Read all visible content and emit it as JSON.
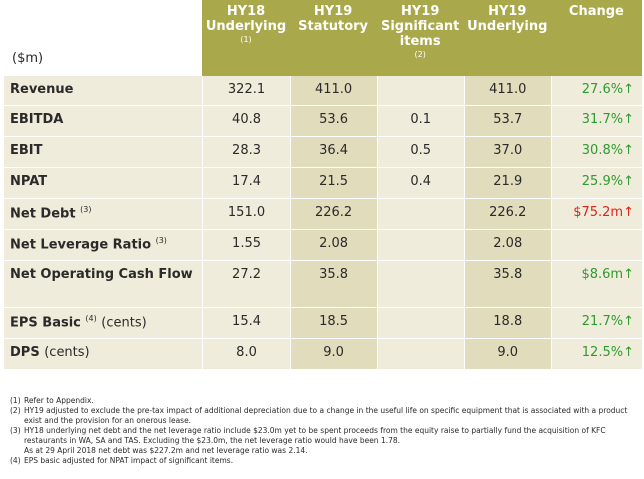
{
  "table": {
    "units_label": "($m)",
    "headers": [
      {
        "title_lines": [
          "HY18",
          "Underlying"
        ],
        "footnote": "(1)"
      },
      {
        "title_lines": [
          "HY19",
          "Statutory"
        ],
        "footnote": ""
      },
      {
        "title_lines": [
          "HY19",
          "Significant",
          "items"
        ],
        "footnote": "(2)"
      },
      {
        "title_lines": [
          "HY19",
          "Underlying"
        ],
        "footnote": ""
      },
      {
        "title_lines": [
          "Change"
        ],
        "footnote": ""
      }
    ],
    "rows": [
      {
        "label": "Revenue",
        "sup": "",
        "paren": "",
        "hy18": "322.1",
        "statutory": "411.0",
        "significant": "",
        "underlying": "411.0",
        "change": "27.6%",
        "change_sign": "pos"
      },
      {
        "label": "EBITDA",
        "sup": "",
        "paren": "",
        "hy18": "40.8",
        "statutory": "53.6",
        "significant": "0.1",
        "underlying": "53.7",
        "change": "31.7%",
        "change_sign": "pos"
      },
      {
        "label": "EBIT",
        "sup": "",
        "paren": "",
        "hy18": "28.3",
        "statutory": "36.4",
        "significant": "0.5",
        "underlying": "37.0",
        "change": "30.8%",
        "change_sign": "pos"
      },
      {
        "label": "NPAT",
        "sup": "",
        "paren": "",
        "hy18": "17.4",
        "statutory": "21.5",
        "significant": "0.4",
        "underlying": "21.9",
        "change": "25.9%",
        "change_sign": "pos"
      },
      {
        "label": "Net Debt",
        "sup": "(3)",
        "paren": "",
        "hy18": "151.0",
        "statutory": "226.2",
        "significant": "",
        "underlying": "226.2",
        "change": "$75.2m",
        "change_sign": "neg"
      },
      {
        "label": "Net Leverage Ratio",
        "sup": "(3)",
        "paren": "",
        "hy18": "1.55",
        "statutory": "2.08",
        "significant": "",
        "underlying": "2.08",
        "change": "",
        "change_sign": ""
      },
      {
        "label": "Net Operating Cash Flow",
        "sup": "",
        "paren": "",
        "hy18": "27.2",
        "statutory": "35.8",
        "significant": "",
        "underlying": "35.8",
        "change": "$8.6m",
        "change_sign": "pos"
      },
      {
        "label": "EPS Basic",
        "sup": "(4)",
        "paren": "(cents)",
        "hy18": "15.4",
        "statutory": "18.5",
        "significant": "",
        "underlying": "18.8",
        "change": "21.7%",
        "change_sign": "pos"
      },
      {
        "label": "DPS",
        "sup": "",
        "paren": "(cents)",
        "hy18": "8.0",
        "statutory": "9.0",
        "significant": "",
        "underlying": "9.0",
        "change": "12.5%",
        "change_sign": "pos"
      }
    ],
    "arrow_glyph": "↑"
  },
  "footnotes": [
    {
      "mark": "(1)",
      "text": "Refer to Appendix."
    },
    {
      "mark": "(2)",
      "text": "HY19 adjusted to exclude the pre-tax impact of additional depreciation due to a change in the useful life on specific equipment that is associated with a product exist and the provision for an onerous lease."
    },
    {
      "mark": "(3)",
      "text": "HY18 underlying net debt and the net leverage ratio include $23.0m yet to be spent proceeds from the equity raise to partially fund the acquisition of KFC restaurants in WA, SA and TAS. Excluding the $23.0m, the net leverage ratio would have been 1.78.",
      "cont": "As at 29 April 2018 net debt was $227.2m and net leverage ratio was 2.14."
    },
    {
      "mark": "(4)",
      "text": "EPS basic adjusted for NPAT impact of significant items."
    }
  ],
  "colors": {
    "header_olive": "#a9a84a",
    "row_light": "#f0ecdb",
    "statutory_col": "#e1dcbc",
    "positive": "#2f9a2f",
    "negative": "#d9261c"
  }
}
